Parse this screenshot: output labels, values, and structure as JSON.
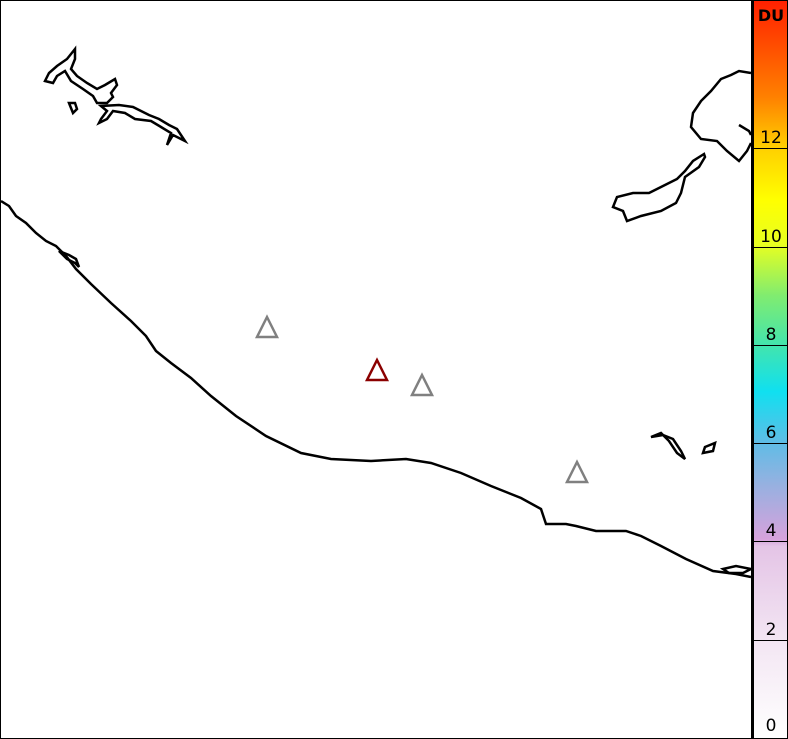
{
  "colorbar": {
    "unit": "DU",
    "ticks": [
      "0",
      "2",
      "4",
      "6",
      "8",
      "10",
      "12"
    ],
    "range": [
      0,
      15
    ],
    "colors": [
      "#ffffff",
      "#e4c4e6",
      "#d6a2dc",
      "#60bce6",
      "#10e0f0",
      "#80ec70",
      "#ffff00",
      "#ff8000",
      "#ff2000"
    ]
  },
  "map": {
    "markers": [
      {
        "icon": "triangle-icon",
        "color": "#8b0000"
      },
      {
        "icon": "triangle-icon",
        "color": "#808080"
      },
      {
        "icon": "triangle-icon",
        "color": "#808080"
      },
      {
        "icon": "triangle-icon",
        "color": "#808080"
      }
    ],
    "coastline_color": "#000000",
    "background_noise_color": "#d9a6dc"
  }
}
